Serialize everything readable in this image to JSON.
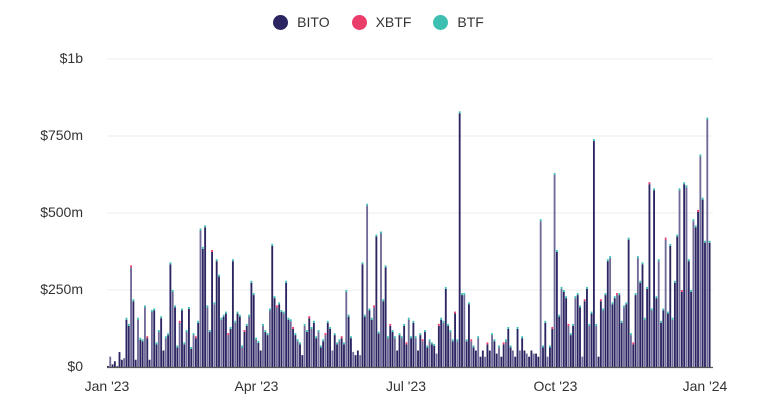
{
  "chart_data": {
    "type": "bar",
    "stacked": true,
    "title": "",
    "xlabel": "",
    "ylabel": "",
    "ylim": [
      0,
      1000
    ],
    "y_unit": "$m",
    "y_ticks": [
      {
        "value": 0,
        "label": "$0"
      },
      {
        "value": 250,
        "label": "$250m"
      },
      {
        "value": 500,
        "label": "$500m"
      },
      {
        "value": 750,
        "label": "$750m"
      },
      {
        "value": 1000,
        "label": "$1b"
      }
    ],
    "x_ticks": [
      {
        "pos": 0,
        "label": "Jan '23"
      },
      {
        "pos": 0.25,
        "label": "Apr '23"
      },
      {
        "pos": 0.5,
        "label": "Jul '23"
      },
      {
        "pos": 0.75,
        "label": "Oct '23"
      },
      {
        "pos": 1.0,
        "label": "Jan '24"
      }
    ],
    "grid": true,
    "legend_position": "top",
    "series": [
      {
        "name": "BITO",
        "color": "#2b2562"
      },
      {
        "name": "XBTF",
        "color": "#ea3d6a"
      },
      {
        "name": "BTF",
        "color": "#3dbfb2"
      }
    ],
    "approx_daily_total_volume_m": [
      10,
      40,
      15,
      25,
      10,
      55,
      30,
      35,
      160,
      140,
      330,
      220,
      30,
      160,
      95,
      90,
      200,
      100,
      30,
      185,
      190,
      80,
      120,
      165,
      60,
      100,
      110,
      340,
      250,
      200,
      70,
      150,
      190,
      80,
      120,
      195,
      65,
      110,
      100,
      150,
      450,
      390,
      460,
      200,
      120,
      380,
      210,
      350,
      300,
      160,
      170,
      180,
      110,
      130,
      350,
      150,
      180,
      170,
      70,
      120,
      140,
      170,
      280,
      240,
      95,
      85,
      60,
      140,
      120,
      110,
      190,
      400,
      230,
      200,
      210,
      185,
      180,
      280,
      160,
      155,
      130,
      110,
      90,
      80,
      45,
      140,
      120,
      165,
      130,
      150,
      100,
      120,
      70,
      90,
      110,
      150,
      130,
      60,
      110,
      80,
      90,
      100,
      80,
      250,
      170,
      100,
      55,
      45,
      60,
      45,
      340,
      170,
      530,
      190,
      160,
      200,
      430,
      115,
      440,
      220,
      330,
      100,
      140,
      120,
      100,
      60,
      110,
      100,
      140,
      80,
      160,
      100,
      150,
      100,
      60,
      110,
      90,
      120,
      70,
      90,
      80,
      75,
      50,
      140,
      160,
      150,
      260,
      140,
      120,
      90,
      180,
      90,
      830,
      240,
      240,
      90,
      210,
      90,
      70,
      60,
      100,
      40,
      60,
      40,
      80,
      60,
      110,
      90,
      50,
      70,
      40,
      80,
      90,
      130,
      70,
      60,
      40,
      130,
      60,
      100,
      60,
      50,
      40,
      60,
      50,
      50,
      40,
      480,
      70,
      150,
      40,
      70,
      130,
      630,
      380,
      170,
      260,
      250,
      230,
      140,
      110,
      140,
      230,
      240,
      200,
      40,
      220,
      260,
      140,
      180,
      740,
      140,
      40,
      220,
      190,
      240,
      350,
      360,
      210,
      230,
      240,
      240,
      150,
      200,
      210,
      420,
      110,
      80,
      240,
      360,
      280,
      340,
      160,
      260,
      600,
      190,
      580,
      230,
      350,
      150,
      190,
      420,
      180,
      400,
      160,
      280,
      430,
      580,
      250,
      600,
      590,
      350,
      250,
      480,
      460,
      510,
      690,
      550,
      410,
      810,
      410
    ]
  }
}
